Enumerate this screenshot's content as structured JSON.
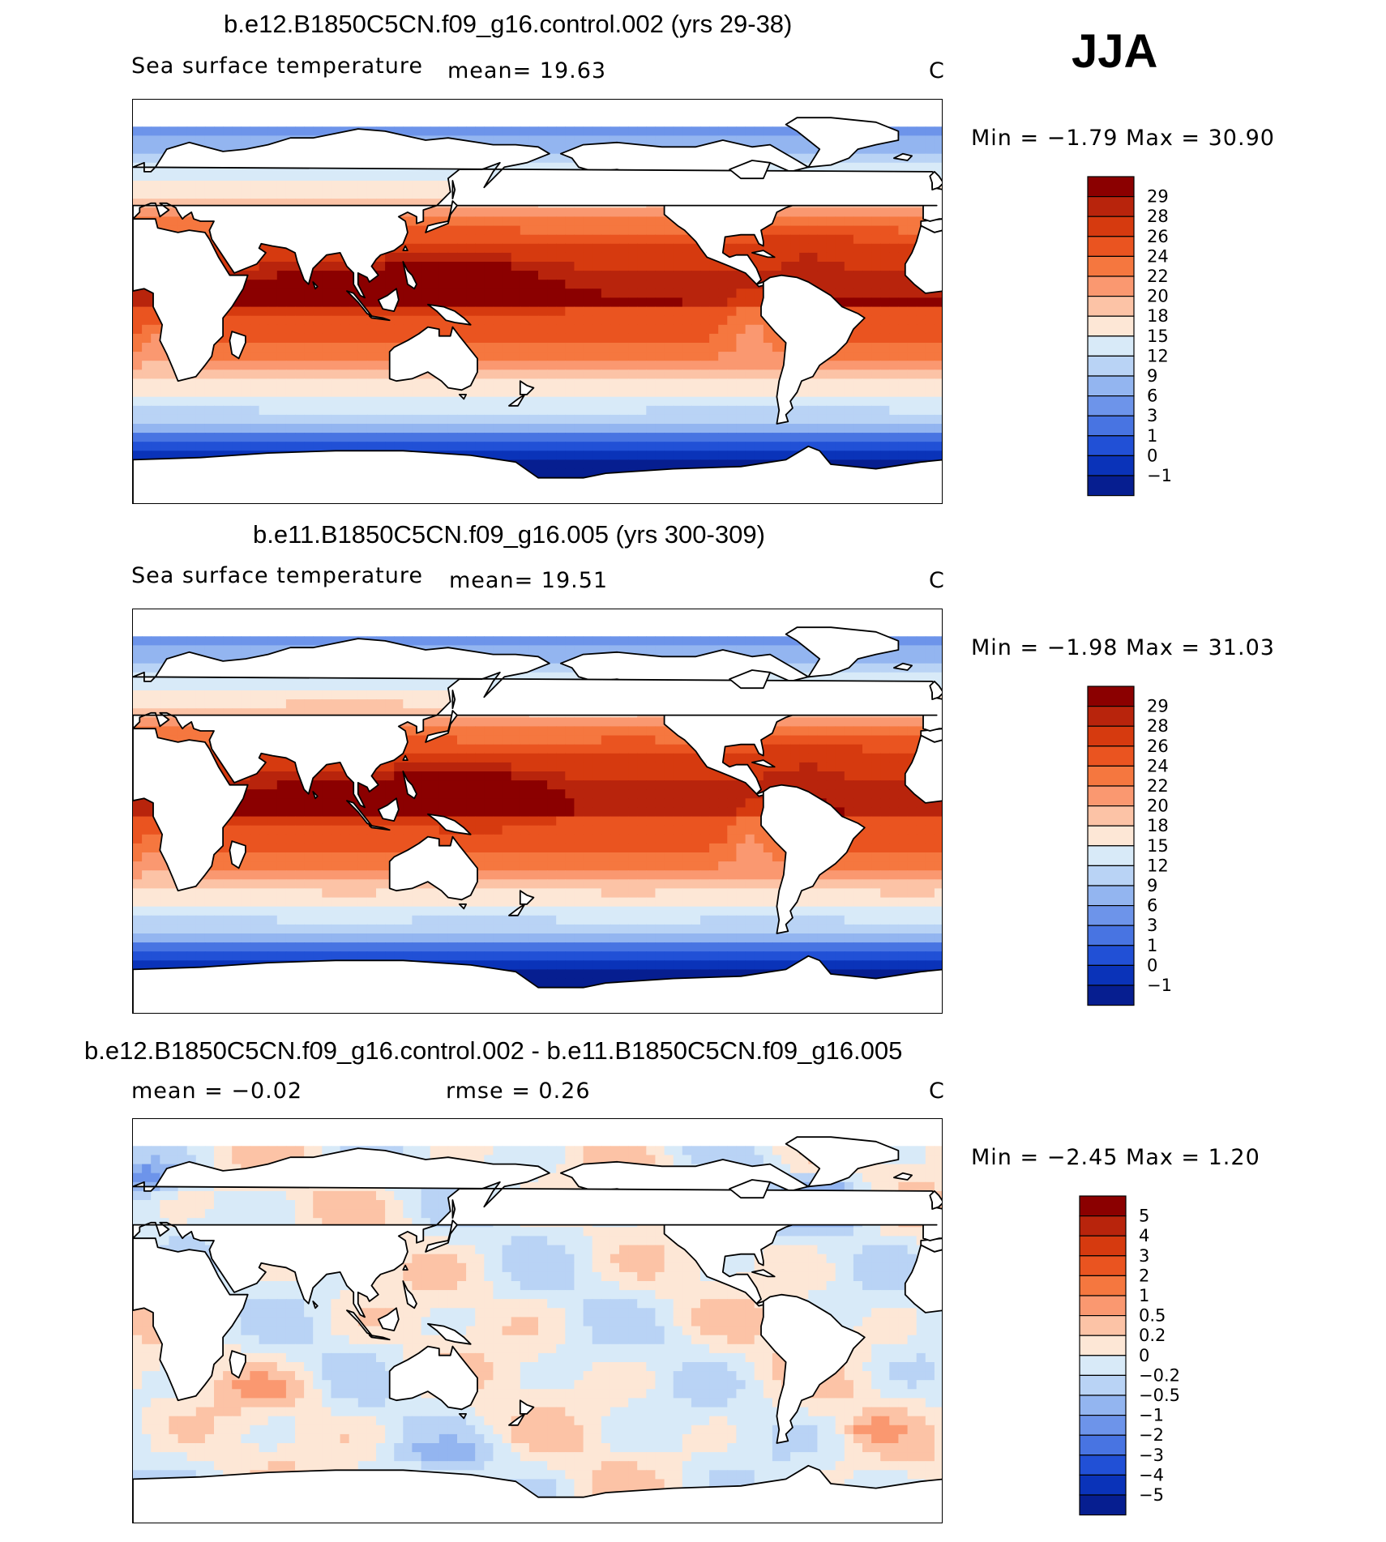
{
  "season_label": "JJA",
  "panels": [
    {
      "title": "b.e12.B1850C5CN.f09_g16.control.002 (yrs 29-38)",
      "left_text": "Sea surface temperature",
      "stat_text": "mean=   19.63",
      "units": "C",
      "minmax_text": "Min =   −1.79 Max =   30.90"
    },
    {
      "title": "b.e11.B1850C5CN.f09_g16.005 (yrs 300-309)",
      "left_text": "Sea surface temperature",
      "stat_text": "mean=   19.51",
      "units": "C",
      "minmax_text": "Min =   −1.98 Max =   31.03"
    },
    {
      "title": "b.e12.B1850C5CN.f09_g16.control.002 - b.e11.B1850C5CN.f09_g16.005",
      "left_text": "mean =   −0.02",
      "stat_text": "rmse =    0.26",
      "units": "C",
      "minmax_text": "Min =   −2.45 Max =    1.20"
    }
  ],
  "chart_data": [
    {
      "type": "heatmap",
      "title": "b.e12.B1850C5CN.f09_g16.control.002 (yrs 29-38)",
      "variable": "Sea surface temperature",
      "units": "C",
      "mean": 19.63,
      "min": -1.79,
      "max": 30.9,
      "colorbar_levels": [
        "29",
        "28",
        "26",
        "24",
        "22",
        "20",
        "18",
        "15",
        "12",
        "9",
        "6",
        "3",
        "1",
        "0",
        "−1"
      ],
      "colorbar_colors": [
        "#8b0000",
        "#b8240c",
        "#d63a0f",
        "#ea5420",
        "#f5773f",
        "#fa9870",
        "#fcc3a6",
        "#fde7d6",
        "#d8eaf8",
        "#b9d3f5",
        "#93b5f0",
        "#6d94ea",
        "#4874e2",
        "#2150d6",
        "#0a33b9",
        "#061e90"
      ]
    },
    {
      "type": "heatmap",
      "title": "b.e11.B1850C5CN.f09_g16.005 (yrs 300-309)",
      "variable": "Sea surface temperature",
      "units": "C",
      "mean": 19.51,
      "min": -1.98,
      "max": 31.03,
      "colorbar_levels": [
        "29",
        "28",
        "26",
        "24",
        "22",
        "20",
        "18",
        "15",
        "12",
        "9",
        "6",
        "3",
        "1",
        "0",
        "−1"
      ],
      "colorbar_colors": [
        "#8b0000",
        "#b8240c",
        "#d63a0f",
        "#ea5420",
        "#f5773f",
        "#fa9870",
        "#fcc3a6",
        "#fde7d6",
        "#d8eaf8",
        "#b9d3f5",
        "#93b5f0",
        "#6d94ea",
        "#4874e2",
        "#2150d6",
        "#0a33b9",
        "#061e90"
      ]
    },
    {
      "type": "heatmap",
      "title": "b.e12.B1850C5CN.f09_g16.control.002 - b.e11.B1850C5CN.f09_g16.005",
      "units": "C",
      "mean": -0.02,
      "rmse": 0.26,
      "min": -2.45,
      "max": 1.2,
      "colorbar_levels": [
        "5",
        "4",
        "3",
        "2",
        "1",
        "0.5",
        "0.2",
        "0",
        "−0.2",
        "−0.5",
        "−1",
        "−2",
        "−3",
        "−4",
        "−5"
      ],
      "colorbar_colors": [
        "#8b0000",
        "#b8240c",
        "#d63a0f",
        "#ea5420",
        "#f5773f",
        "#fa9870",
        "#fcc3a6",
        "#fde7d6",
        "#d8eaf8",
        "#b9d3f5",
        "#93b5f0",
        "#6d94ea",
        "#4874e2",
        "#2150d6",
        "#0a33b9",
        "#061e90"
      ]
    }
  ]
}
